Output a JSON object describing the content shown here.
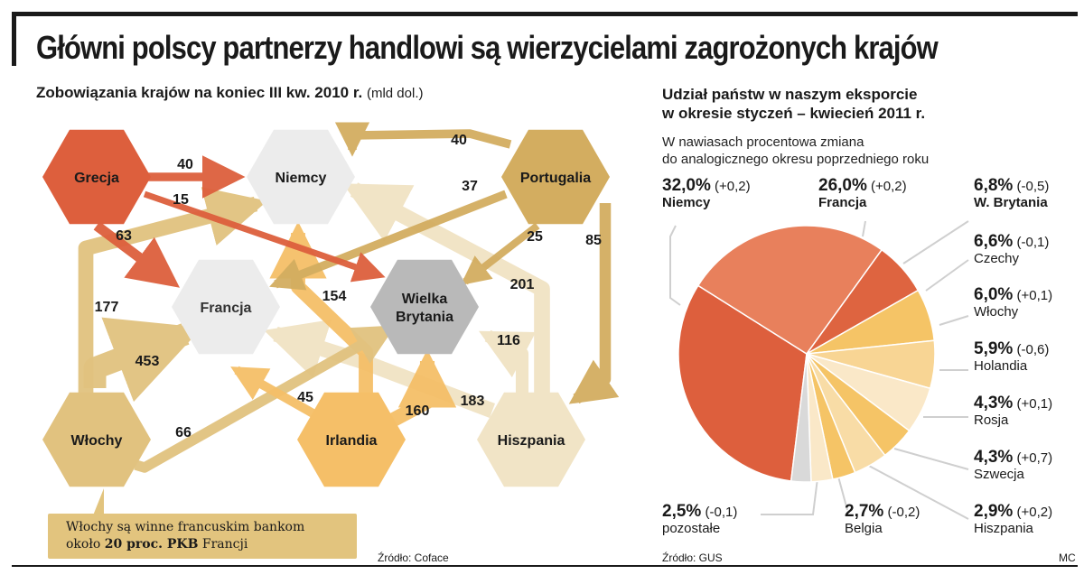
{
  "header": {
    "title": "Główni polscy partnerzy handlowi są wierzycielami zagrożonych krajów"
  },
  "left": {
    "subtitle": "Zobowiązania krajów na koniec III kw. 2010 r.",
    "unit": "(mld dol.)",
    "note_line1": "Włochy są winne francuskim bankom",
    "note_line2_a": "około ",
    "note_line2_b": "20 proc. PKB",
    "note_line2_c": " Francji",
    "source": "Źródło: Coface"
  },
  "right": {
    "title_line1": "Udział państw w naszym eksporcie",
    "title_line2": "w okresie styczeń – kwiecień 2011 r.",
    "sub_line1": "W nawiasach procentowa zmiana",
    "sub_line2": "do analogicznego okresu poprzedniego roku",
    "source": "Źródło: GUS",
    "credit": "MC"
  },
  "colors": {
    "debtor_red": "#dd5f3d",
    "portugal": "#d3ad60",
    "italy": "#e1c27f",
    "ireland": "#f5bf68",
    "spain": "#f1e4c6",
    "creditor_light": "#ececec",
    "uk": "#b9b9b9"
  },
  "chart_data": [
    {
      "type": "flow",
      "nodes": [
        {
          "id": "GR",
          "label": "Grecja"
        },
        {
          "id": "DE",
          "label": "Niemcy"
        },
        {
          "id": "PT",
          "label": "Portugalia"
        },
        {
          "id": "FR",
          "label": "Francja"
        },
        {
          "id": "UK",
          "label": "Wielka Brytania",
          "label_lines": [
            "Wielka",
            "Brytania"
          ]
        },
        {
          "id": "IT",
          "label": "Włochy"
        },
        {
          "id": "IE",
          "label": "Irlandia"
        },
        {
          "id": "ES",
          "label": "Hiszpania"
        }
      ],
      "flows": [
        {
          "from": "GR",
          "to": "DE",
          "value": 40
        },
        {
          "from": "GR",
          "to": "UK",
          "value": 15
        },
        {
          "from": "GR",
          "to": "FR",
          "value": 63
        },
        {
          "from": "PT",
          "to": "DE",
          "value": 40
        },
        {
          "from": "PT",
          "to": "FR",
          "value": 37
        },
        {
          "from": "PT",
          "to": "UK",
          "value": 25
        },
        {
          "from": "PT",
          "to": "ES",
          "value": 85
        },
        {
          "from": "IT",
          "to": "DE",
          "value": 177
        },
        {
          "from": "IT",
          "to": "FR",
          "value": 453
        },
        {
          "from": "IT",
          "to": "UK",
          "value": 66
        },
        {
          "from": "IE",
          "to": "DE",
          "value": 154
        },
        {
          "from": "IE",
          "to": "FR",
          "value": 45
        },
        {
          "from": "IE",
          "to": "UK",
          "value": 160
        },
        {
          "from": "ES",
          "to": "DE",
          "value": 201
        },
        {
          "from": "ES",
          "to": "UK",
          "value": 116
        },
        {
          "from": "ES",
          "to": "FR",
          "value": 183
        }
      ]
    },
    {
      "type": "pie",
      "slices": [
        {
          "label": "Niemcy",
          "pct": "32,0%",
          "change": "(+0,2)",
          "value": 32.0,
          "color": "#dd5f3d",
          "bold_name": true
        },
        {
          "label": "Francja",
          "pct": "26,0%",
          "change": "(+0,2)",
          "value": 26.0,
          "color": "#e8805c",
          "bold_name": true
        },
        {
          "label": "W. Brytania",
          "pct": "6,8%",
          "change": "(-0,5)",
          "value": 6.8,
          "color": "#de6440",
          "bold_name": true
        },
        {
          "label": "Czechy",
          "pct": "6,6%",
          "change": "(-0,1)",
          "value": 6.6,
          "color": "#f5c466",
          "bold_name": false
        },
        {
          "label": "Włochy",
          "pct": "6,0%",
          "change": "(+0,1)",
          "value": 6.0,
          "color": "#f8d594",
          "bold_name": false
        },
        {
          "label": "Holandia",
          "pct": "5,9%",
          "change": "(-0,6)",
          "value": 5.9,
          "color": "#fae8c8",
          "bold_name": false
        },
        {
          "label": "Rosja",
          "pct": "4,3%",
          "change": "(+0,1)",
          "value": 4.3,
          "color": "#f5c466",
          "bold_name": false
        },
        {
          "label": "Szwecja",
          "pct": "4,3%",
          "change": "(+0,7)",
          "value": 4.3,
          "color": "#f8dca6",
          "bold_name": false
        },
        {
          "label": "Hiszpania",
          "pct": "2,9%",
          "change": "(+0,2)",
          "value": 2.9,
          "color": "#f5c466",
          "bold_name": false
        },
        {
          "label": "Belgia",
          "pct": "2,7%",
          "change": "(-0,2)",
          "value": 2.7,
          "color": "#fae8c8",
          "bold_name": false
        },
        {
          "label": "pozostałe",
          "pct": "2,5%",
          "change": "(-0,1)",
          "value": 2.5,
          "color": "#d9d9d9",
          "bold_name": false
        }
      ]
    }
  ]
}
